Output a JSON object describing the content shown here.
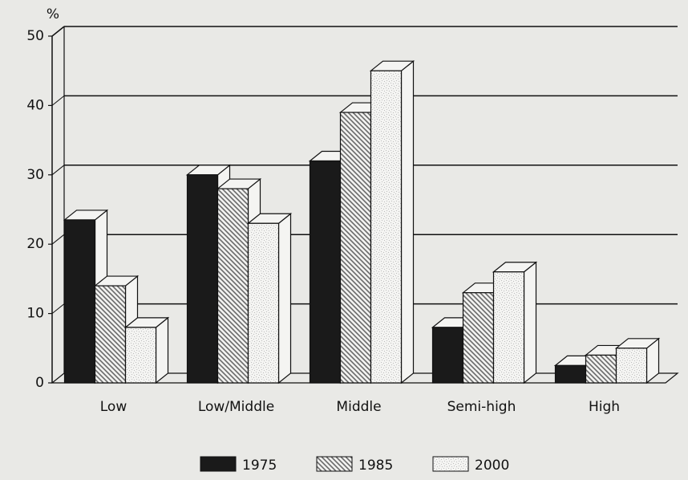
{
  "chart_data": {
    "type": "bar3d",
    "y_unit": "%",
    "categories": [
      "Low",
      "Low/Middle",
      "Middle",
      "Semi-high",
      "High"
    ],
    "series": [
      {
        "name": "1975",
        "color": "#1a1a1a",
        "values": [
          23.5,
          30,
          32,
          8,
          2.5
        ]
      },
      {
        "name": "1985",
        "color": "#6a6a6a",
        "values": [
          14,
          28,
          39,
          13,
          4
        ]
      },
      {
        "name": "2000",
        "color": "#bdbdbd",
        "values": [
          8,
          23,
          45,
          16,
          5
        ]
      }
    ],
    "ylim": [
      0,
      50
    ],
    "yticks": [
      0,
      10,
      20,
      30,
      40,
      50
    ],
    "grid": true
  }
}
